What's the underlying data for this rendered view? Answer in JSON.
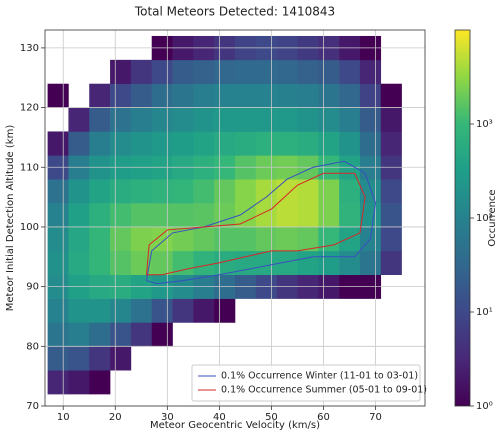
{
  "chart_data": {
    "type": "heatmap",
    "title": "Total Meteors Detected: 1410843",
    "x_label": "Meteor Geocentric Velocity (km/s)",
    "y_label": "Meteor Initial Detection Altitude (km)",
    "colorbar_label": "Occurrence",
    "xlim": [
      6.5,
      79.5
    ],
    "ylim": [
      70,
      133
    ],
    "xticks": [
      10,
      20,
      30,
      40,
      50,
      60,
      70
    ],
    "yticks": [
      70,
      80,
      90,
      100,
      110,
      120,
      130
    ],
    "grid": true,
    "clim": [
      1,
      10000
    ],
    "color_log": true,
    "colormap": "viridis",
    "cticks": [
      {
        "value": 1,
        "label": "10⁰"
      },
      {
        "value": 10,
        "label": "10¹"
      },
      {
        "value": 100,
        "label": "10²"
      },
      {
        "value": 1000,
        "label": "10³"
      }
    ],
    "x_bins": [
      7,
      11,
      15,
      19,
      23,
      27,
      31,
      35,
      39,
      43,
      47,
      51,
      55,
      59,
      63,
      67,
      71,
      75,
      79
    ],
    "y_bins": [
      72,
      76,
      80,
      84,
      88,
      92,
      96,
      100,
      104,
      108,
      112,
      116,
      120,
      124,
      128,
      132
    ],
    "z": [
      [
        3,
        2,
        1,
        0,
        0,
        0,
        0,
        0,
        0,
        0,
        0,
        0,
        0,
        0,
        0,
        0,
        0,
        0
      ],
      [
        20,
        15,
        5,
        2,
        0,
        0,
        0,
        0,
        0,
        0,
        0,
        0,
        0,
        0,
        0,
        0,
        0,
        0
      ],
      [
        60,
        80,
        40,
        15,
        5,
        1,
        0,
        0,
        0,
        0,
        0,
        0,
        0,
        0,
        0,
        0,
        0,
        0
      ],
      [
        100,
        200,
        200,
        120,
        50,
        15,
        5,
        2,
        1,
        0,
        0,
        0,
        0,
        0,
        0,
        0,
        0,
        0
      ],
      [
        150,
        350,
        500,
        600,
        400,
        250,
        150,
        80,
        40,
        20,
        10,
        5,
        3,
        2,
        1,
        1,
        0,
        0
      ],
      [
        180,
        500,
        900,
        1500,
        2000,
        1800,
        1200,
        800,
        600,
        500,
        500,
        500,
        400,
        300,
        150,
        60,
        5,
        0
      ],
      [
        150,
        450,
        900,
        1800,
        2500,
        2600,
        2200,
        1800,
        1500,
        1500,
        1800,
        2000,
        1800,
        1000,
        400,
        100,
        10,
        0
      ],
      [
        100,
        350,
        700,
        1200,
        1500,
        1500,
        1500,
        1600,
        2000,
        2800,
        4000,
        5000,
        4500,
        2500,
        800,
        200,
        15,
        0
      ],
      [
        50,
        200,
        400,
        600,
        700,
        800,
        900,
        1200,
        1800,
        2800,
        4000,
        5000,
        4500,
        2500,
        700,
        150,
        10,
        0
      ],
      [
        10,
        80,
        200,
        300,
        350,
        400,
        500,
        700,
        1000,
        1500,
        2000,
        2200,
        1800,
        1000,
        400,
        80,
        5,
        0
      ],
      [
        2,
        20,
        80,
        150,
        200,
        250,
        300,
        400,
        500,
        600,
        700,
        700,
        600,
        400,
        200,
        40,
        3,
        0
      ],
      [
        0,
        3,
        20,
        50,
        80,
        120,
        150,
        200,
        250,
        250,
        250,
        250,
        200,
        150,
        80,
        20,
        2,
        0
      ],
      [
        1,
        0,
        3,
        10,
        20,
        40,
        60,
        80,
        100,
        100,
        100,
        90,
        80,
        60,
        30,
        8,
        1,
        0
      ],
      [
        0,
        0,
        0,
        2,
        5,
        10,
        20,
        25,
        30,
        35,
        35,
        30,
        25,
        20,
        10,
        3,
        0,
        0
      ],
      [
        0,
        0,
        0,
        0,
        0,
        1,
        2,
        3,
        5,
        8,
        10,
        8,
        6,
        4,
        2,
        1,
        0,
        0
      ]
    ],
    "legend": "lower right",
    "series": [
      {
        "name": "0.1% Occurrence Winter (11-01 to 03-01)",
        "color": "#3a4fc0",
        "x": [
          26,
          27,
          31,
          37,
          44,
          49,
          53,
          58,
          64,
          68,
          70,
          69,
          66,
          58,
          52,
          46,
          40,
          33,
          28
        ],
        "y": [
          91,
          96,
          99,
          100,
          102,
          105,
          108,
          110,
          111,
          109,
          104,
          98,
          95,
          95,
          94,
          93,
          92,
          91,
          90.5
        ]
      },
      {
        "name": "0.1% Occurrence Summer (05-01 to 09-01)",
        "color": "#d62728",
        "x": [
          26,
          26.5,
          30,
          37,
          44,
          50,
          55,
          60,
          66,
          68,
          67,
          62,
          55,
          50,
          45,
          40,
          34,
          29
        ],
        "y": [
          92,
          97,
          99.5,
          100,
          100.5,
          103,
          107,
          109,
          109,
          105,
          99,
          97,
          96,
          96,
          95,
          94,
          93,
          92
        ]
      }
    ]
  }
}
